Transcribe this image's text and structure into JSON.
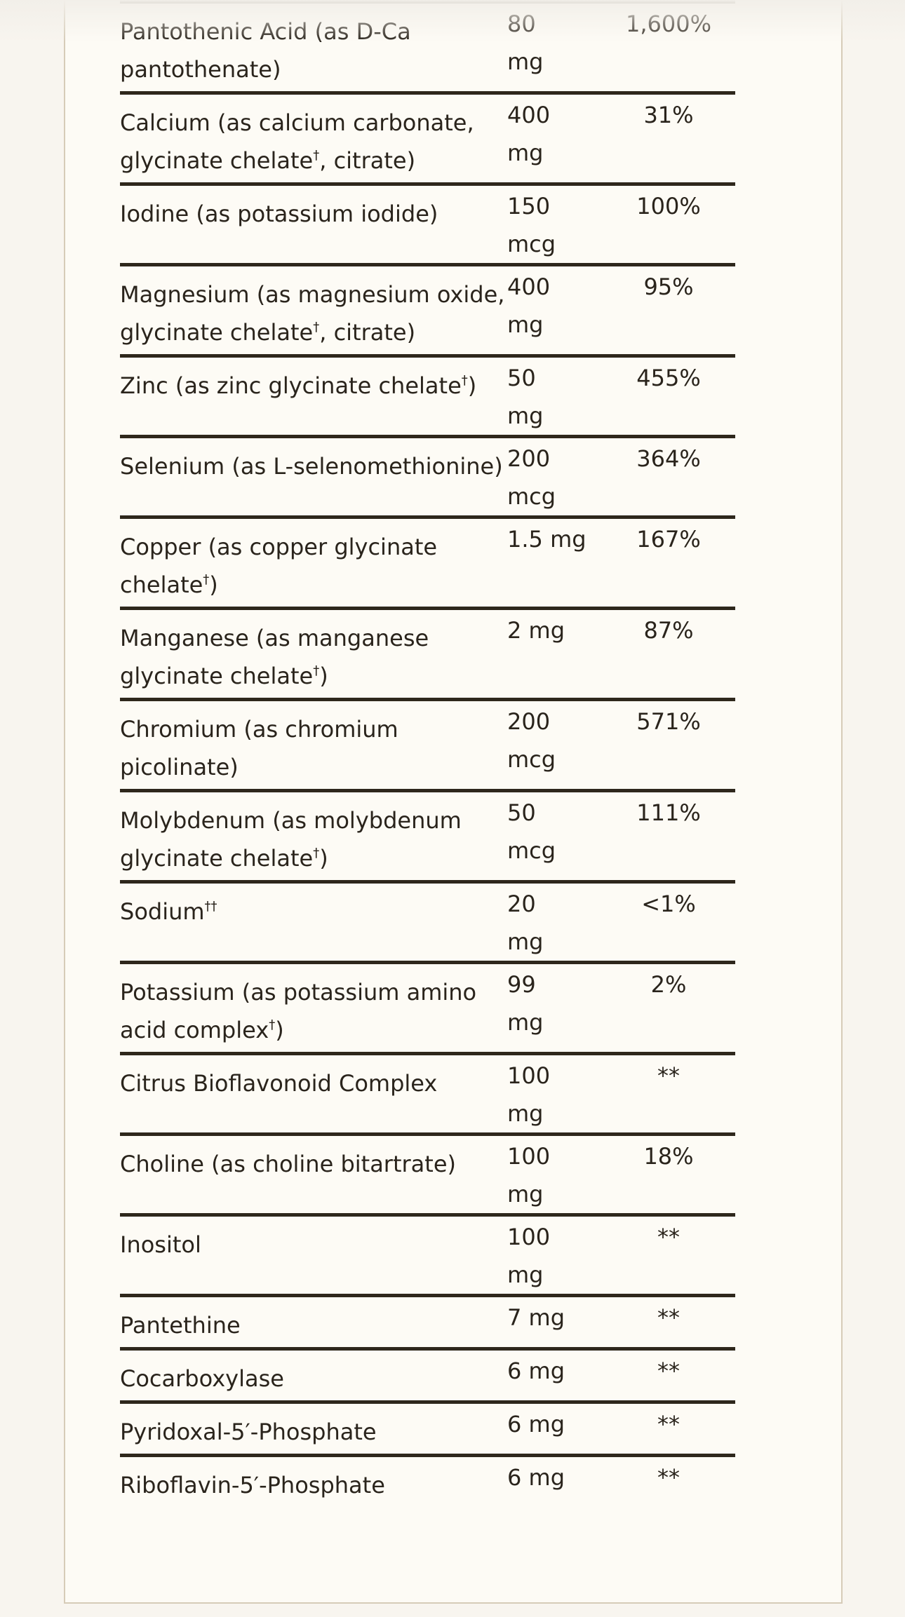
{
  "rows": [
    {
      "name": "Pantothenic Acid (as D-Ca pantothenate)",
      "sup": "",
      "amount": "80 mg",
      "dv": "1,600%"
    },
    {
      "name": "Calcium (as calcium carbonate, glycinate chelate",
      "sup": "†",
      "suffix": ", citrate)",
      "amount": "400 mg",
      "dv": "31%"
    },
    {
      "name": "Iodine (as potassium iodide)",
      "sup": "",
      "amount": "150 mcg",
      "dv": "100%"
    },
    {
      "name": "Magnesium (as magnesium oxide, glycinate chelate",
      "sup": "†",
      "suffix": ", citrate)",
      "amount": "400 mg",
      "dv": "95%"
    },
    {
      "name": "Zinc (as zinc glycinate chelate",
      "sup": "†",
      "suffix": ")",
      "amount": "50 mg",
      "dv": "455%"
    },
    {
      "name": "Selenium (as L-selenomethionine)",
      "sup": "",
      "amount": "200 mcg",
      "dv": "364%"
    },
    {
      "name": "Copper (as copper glycinate chelate",
      "sup": "†",
      "suffix": ")",
      "amount": "1.5 mg",
      "dv": "167%"
    },
    {
      "name": "Manganese (as manganese glycinate chelate",
      "sup": "†",
      "suffix": ")",
      "amount": "2 mg",
      "dv": "87%"
    },
    {
      "name": "Chromium (as chromium picolinate)",
      "sup": "",
      "amount": "200 mcg",
      "dv": "571%"
    },
    {
      "name": "Molybdenum (as molybdenum glycinate chelate",
      "sup": "†",
      "suffix": ")",
      "amount": "50 mcg",
      "dv": "111%"
    },
    {
      "name": "Sodium",
      "sup": "††",
      "suffix": "",
      "amount": "20 mg",
      "dv": "<1%"
    },
    {
      "name": "Potassium (as potassium amino acid complex",
      "sup": "†",
      "suffix": ")",
      "amount": "99 mg",
      "dv": "2%"
    },
    {
      "name": "Citrus Bioflavonoid Complex",
      "sup": "",
      "amount": "100 mg",
      "dv": "**"
    },
    {
      "name": "Choline (as choline bitartrate)",
      "sup": "",
      "amount": "100 mg",
      "dv": "18%"
    },
    {
      "name": "Inositol",
      "sup": "",
      "amount": "100 mg",
      "dv": "**"
    },
    {
      "name": "Pantethine",
      "sup": "",
      "amount": "7 mg",
      "dv": "**"
    },
    {
      "name": "Cocarboxylase",
      "sup": "",
      "amount": "6 mg",
      "dv": "**"
    },
    {
      "name": "Pyridoxal-5′-Phosphate",
      "sup": "",
      "amount": "6 mg",
      "dv": "**"
    },
    {
      "name": "Riboflavin-5′-Phosphate",
      "sup": "",
      "amount": "6 mg",
      "dv": "**"
    }
  ]
}
